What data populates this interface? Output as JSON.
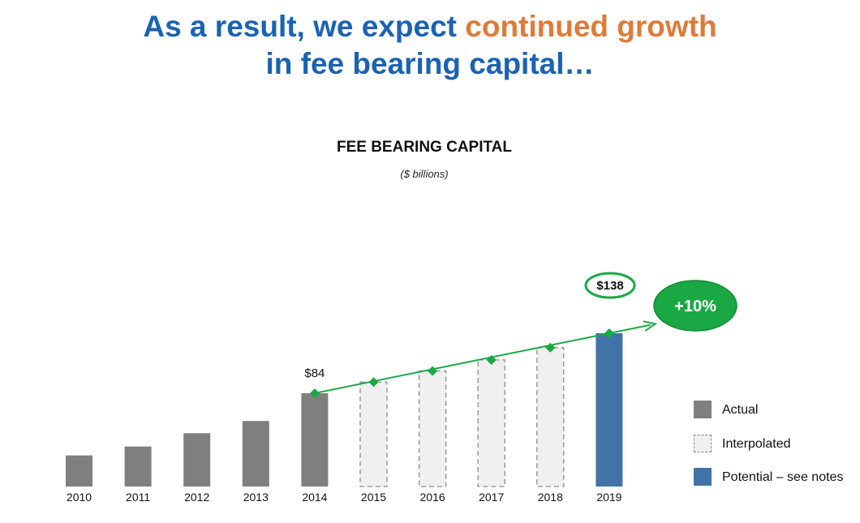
{
  "headline": {
    "part1": "As a result, we expect ",
    "accent": "continued growth",
    "line2": "in fee bearing capital…"
  },
  "chart_data": {
    "type": "bar",
    "title": "FEE BEARING CAPITAL",
    "subtitle": "($ billions)",
    "categories": [
      "2010",
      "2011",
      "2012",
      "2013",
      "2014",
      "2015",
      "2016",
      "2017",
      "2018",
      "2019"
    ],
    "values": [
      28,
      36,
      48,
      59,
      84,
      94,
      104,
      114,
      125,
      138
    ],
    "kinds": [
      "actual",
      "actual",
      "actual",
      "actual",
      "actual",
      "interpolated",
      "interpolated",
      "interpolated",
      "interpolated",
      "potential"
    ],
    "data_labels": {
      "2014": "$84",
      "2019": "$138"
    },
    "trend_line": {
      "from": "2014",
      "to": "2019"
    },
    "growth_badge": "+10%",
    "ylim": [
      0,
      165
    ],
    "legend": [
      {
        "key": "actual",
        "label": "Actual"
      },
      {
        "key": "interpolated",
        "label": "Interpolated"
      },
      {
        "key": "potential",
        "label": "Potential – see notes"
      }
    ],
    "legend_position": "right",
    "grid": false,
    "colors": {
      "actual": "#7f7f7f",
      "interpolated_fill": "#f0f0f0",
      "interpolated_border": "#8c8c8c",
      "potential": "#4273a6",
      "trend": "#1aa845",
      "badge": "#1aa845"
    }
  }
}
